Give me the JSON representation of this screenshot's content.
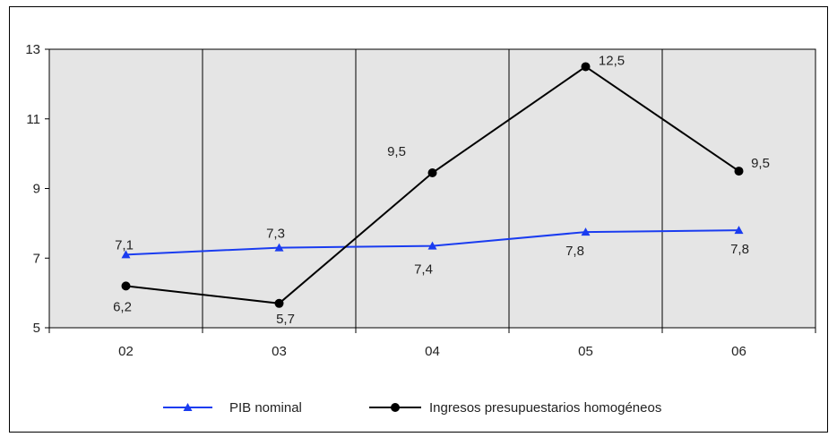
{
  "chart_data": {
    "type": "line",
    "title": "",
    "xlabel": "",
    "ylabel": "",
    "categories": [
      "02",
      "03",
      "04",
      "05",
      "06"
    ],
    "ylim": [
      5,
      13
    ],
    "yticks": [
      "5",
      "7",
      "9",
      "11",
      "13"
    ],
    "grid": "vertical",
    "legend_position": "bottom",
    "plot_background": "#e5e5e5",
    "series": [
      {
        "name": "PIB nominal",
        "color": "#1a3cf0",
        "marker": "triangle",
        "values": [
          7.1,
          7.3,
          7.35,
          7.75,
          7.8
        ],
        "labels": [
          "7,1",
          "7,3",
          "7,4",
          "7,8",
          "7,8"
        ]
      },
      {
        "name": "Ingresos presupuestarios homogéneos",
        "color": "#000000",
        "marker": "circle",
        "values": [
          6.2,
          5.7,
          9.45,
          12.5,
          9.5
        ],
        "labels": [
          "6,2",
          "5,7",
          "9,5",
          "12,5",
          "9,5"
        ]
      }
    ]
  }
}
